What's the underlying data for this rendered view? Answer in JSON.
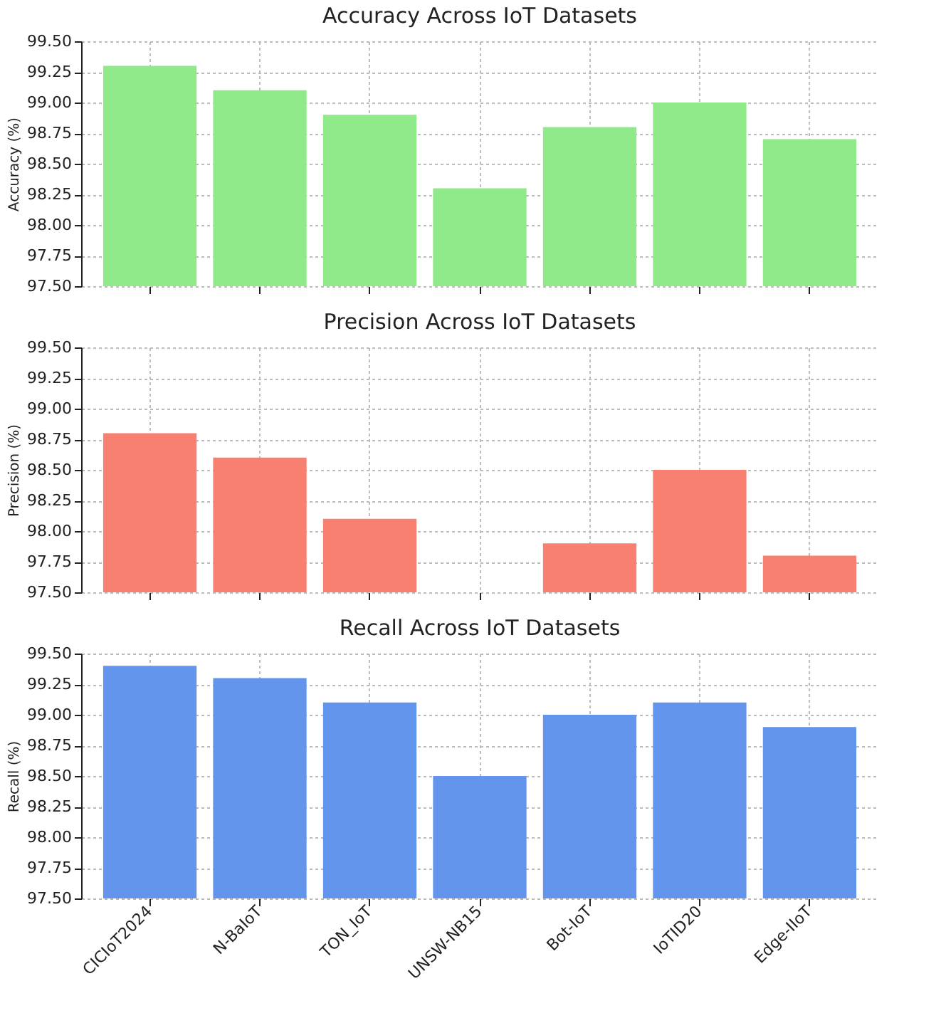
{
  "chart_data": [
    {
      "type": "bar",
      "title": "Accuracy Across IoT Datasets",
      "ylabel": "Accuracy (%)",
      "categories": [
        null,
        null,
        null,
        null,
        null,
        null,
        null
      ],
      "values": [
        99.3,
        99.1,
        98.9,
        98.3,
        98.8,
        99.0,
        98.7
      ],
      "color": "#90ea8a",
      "ylim": [
        97.5,
        99.5
      ],
      "yticks": [
        {
          "value": 97.5,
          "label": "97.50"
        },
        {
          "value": 97.75,
          "label": "97.75"
        },
        {
          "value": 98.0,
          "label": "98.00"
        },
        {
          "value": 98.25,
          "label": "98.25"
        },
        {
          "value": 98.5,
          "label": "98.50"
        },
        {
          "value": 98.75,
          "label": "98.75"
        },
        {
          "value": 99.0,
          "label": "99.00"
        },
        {
          "value": 99.25,
          "label": "99.25"
        },
        {
          "value": 99.5,
          "label": "99.50"
        }
      ],
      "grid": true,
      "tick_labels": "y"
    },
    {
      "type": "bar",
      "title": "Precision Across IoT Datasets",
      "ylabel": "Precision (%)",
      "categories": [
        null,
        null,
        null,
        null,
        null,
        null,
        null
      ],
      "values": [
        98.8,
        98.6,
        98.1,
        null,
        97.9,
        98.5,
        97.8
      ],
      "color": "#f88070",
      "ylim": [
        97.5,
        99.5
      ],
      "yticks": [
        {
          "value": 97.5,
          "label": "97.50"
        },
        {
          "value": 97.75,
          "label": "97.75"
        },
        {
          "value": 98.0,
          "label": "98.00"
        },
        {
          "value": 98.25,
          "label": "98.25"
        },
        {
          "value": 98.5,
          "label": "98.50"
        },
        {
          "value": 98.75,
          "label": "98.75"
        },
        {
          "value": 99.0,
          "label": "99.00"
        },
        {
          "value": 99.25,
          "label": "99.25"
        },
        {
          "value": 99.5,
          "label": "99.50"
        }
      ],
      "grid": true,
      "tick_labels": "y"
    },
    {
      "type": "bar",
      "title": "Recall Across IoT Datasets",
      "ylabel": "Recall (%)",
      "categories": [
        "CICIoT2024",
        "N-BaIoT",
        "TON_IoT",
        "UNSW-NB15",
        "Bot-IoT",
        "IoTID20",
        "Edge-IIoT"
      ],
      "values": [
        99.4,
        99.3,
        99.1,
        98.5,
        99.0,
        99.1,
        98.9
      ],
      "color": "#6495ec",
      "ylim": [
        97.5,
        99.5
      ],
      "yticks": [
        {
          "value": 97.5,
          "label": "97.50"
        },
        {
          "value": 97.75,
          "label": "97.75"
        },
        {
          "value": 98.0,
          "label": "98.00"
        },
        {
          "value": 98.25,
          "label": "98.25"
        },
        {
          "value": 98.5,
          "label": "98.50"
        },
        {
          "value": 98.75,
          "label": "98.75"
        },
        {
          "value": 99.0,
          "label": "99.00"
        },
        {
          "value": 99.25,
          "label": "99.25"
        },
        {
          "value": 99.5,
          "label": "99.50"
        }
      ],
      "grid": true
    }
  ]
}
